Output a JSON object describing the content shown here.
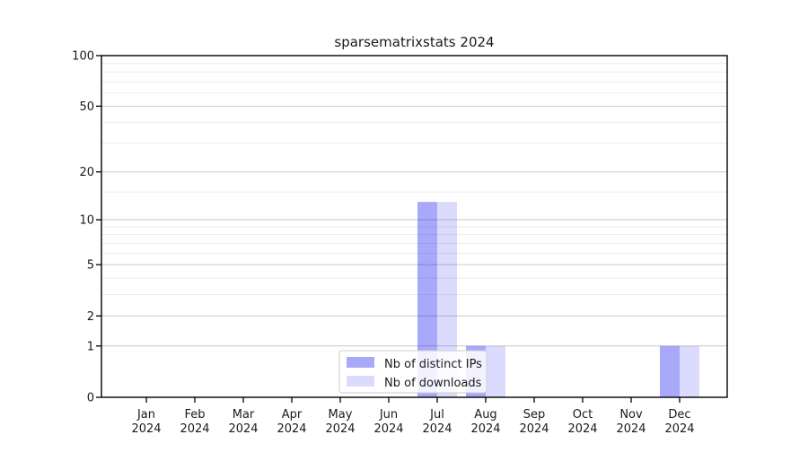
{
  "figure": {
    "background": "#ffffff"
  },
  "chart_data": {
    "type": "bar",
    "title": "sparsematrixstats 2024",
    "categories": [
      "Jan",
      "Feb",
      "Mar",
      "Apr",
      "May",
      "Jun",
      "Jul",
      "Aug",
      "Sep",
      "Oct",
      "Nov",
      "Dec"
    ],
    "x_year_line": "2024",
    "series": [
      {
        "name": "Nb of distinct IPs",
        "slug": "distinct-ips",
        "color": "rgba(2,2,238,0.34)",
        "values": [
          0,
          0,
          0,
          0,
          0,
          0,
          13,
          1,
          0,
          0,
          0,
          1
        ]
      },
      {
        "name": "Nb of downloads",
        "slug": "downloads",
        "color": "rgba(2,2,238,0.14)",
        "values": [
          0,
          0,
          0,
          0,
          0,
          0,
          13,
          1,
          0,
          0,
          0,
          1
        ]
      }
    ],
    "yscale": "log1p",
    "ylim": [
      0,
      100
    ],
    "yticks": [
      0,
      1,
      2,
      5,
      10,
      20,
      50,
      100
    ],
    "minor_yticks": [
      3,
      4,
      6,
      7,
      8,
      9,
      15,
      30,
      40,
      60,
      70,
      80,
      90
    ],
    "grid": "both",
    "legend_position": "lower center",
    "xlabel": "",
    "ylabel": ""
  },
  "colors": {
    "axis": "#000000",
    "text": "#1a1a1a",
    "grid_major": "#c9c9c9",
    "grid_minor": "#ececec",
    "legend_border": "#cccccc",
    "legend_bg": "rgba(255,255,255,0.85)"
  }
}
